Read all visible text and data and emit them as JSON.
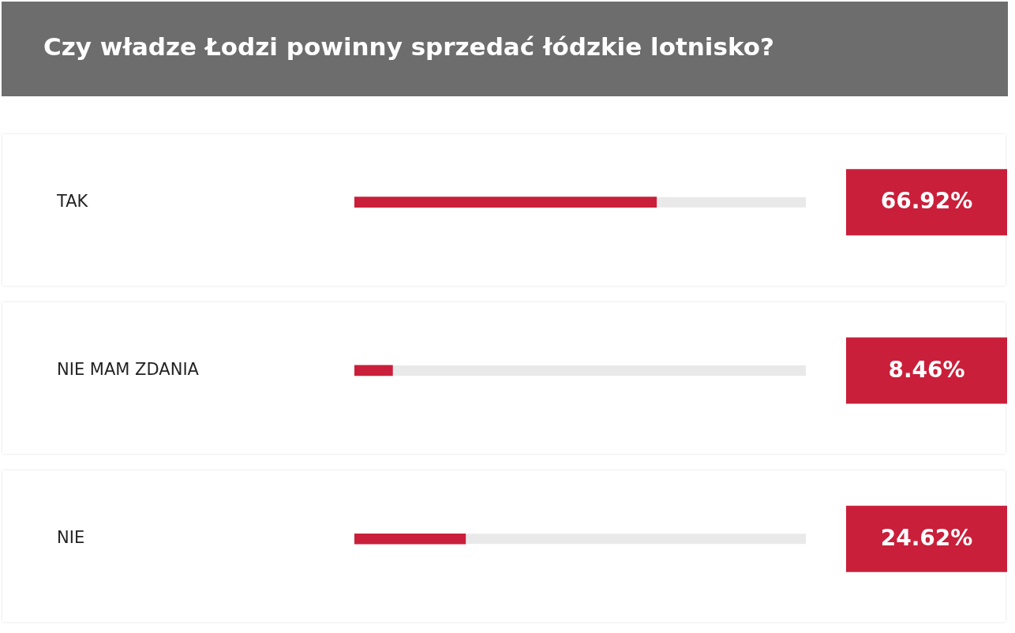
{
  "chart_data": {
    "type": "bar",
    "orientation": "horizontal",
    "title": "Czy władze Łodzi powinny sprzedać łódzkie lotnisko?",
    "categories": [
      "TAK",
      "NIE MAM ZDANIA",
      "NIE"
    ],
    "values": [
      66.92,
      8.46,
      24.62
    ],
    "value_labels": [
      "66.92%",
      "8.46%",
      "24.62%"
    ],
    "color": "#c91f3a",
    "xlim": [
      0,
      100
    ],
    "tick_labels": "y",
    "legend": false
  }
}
